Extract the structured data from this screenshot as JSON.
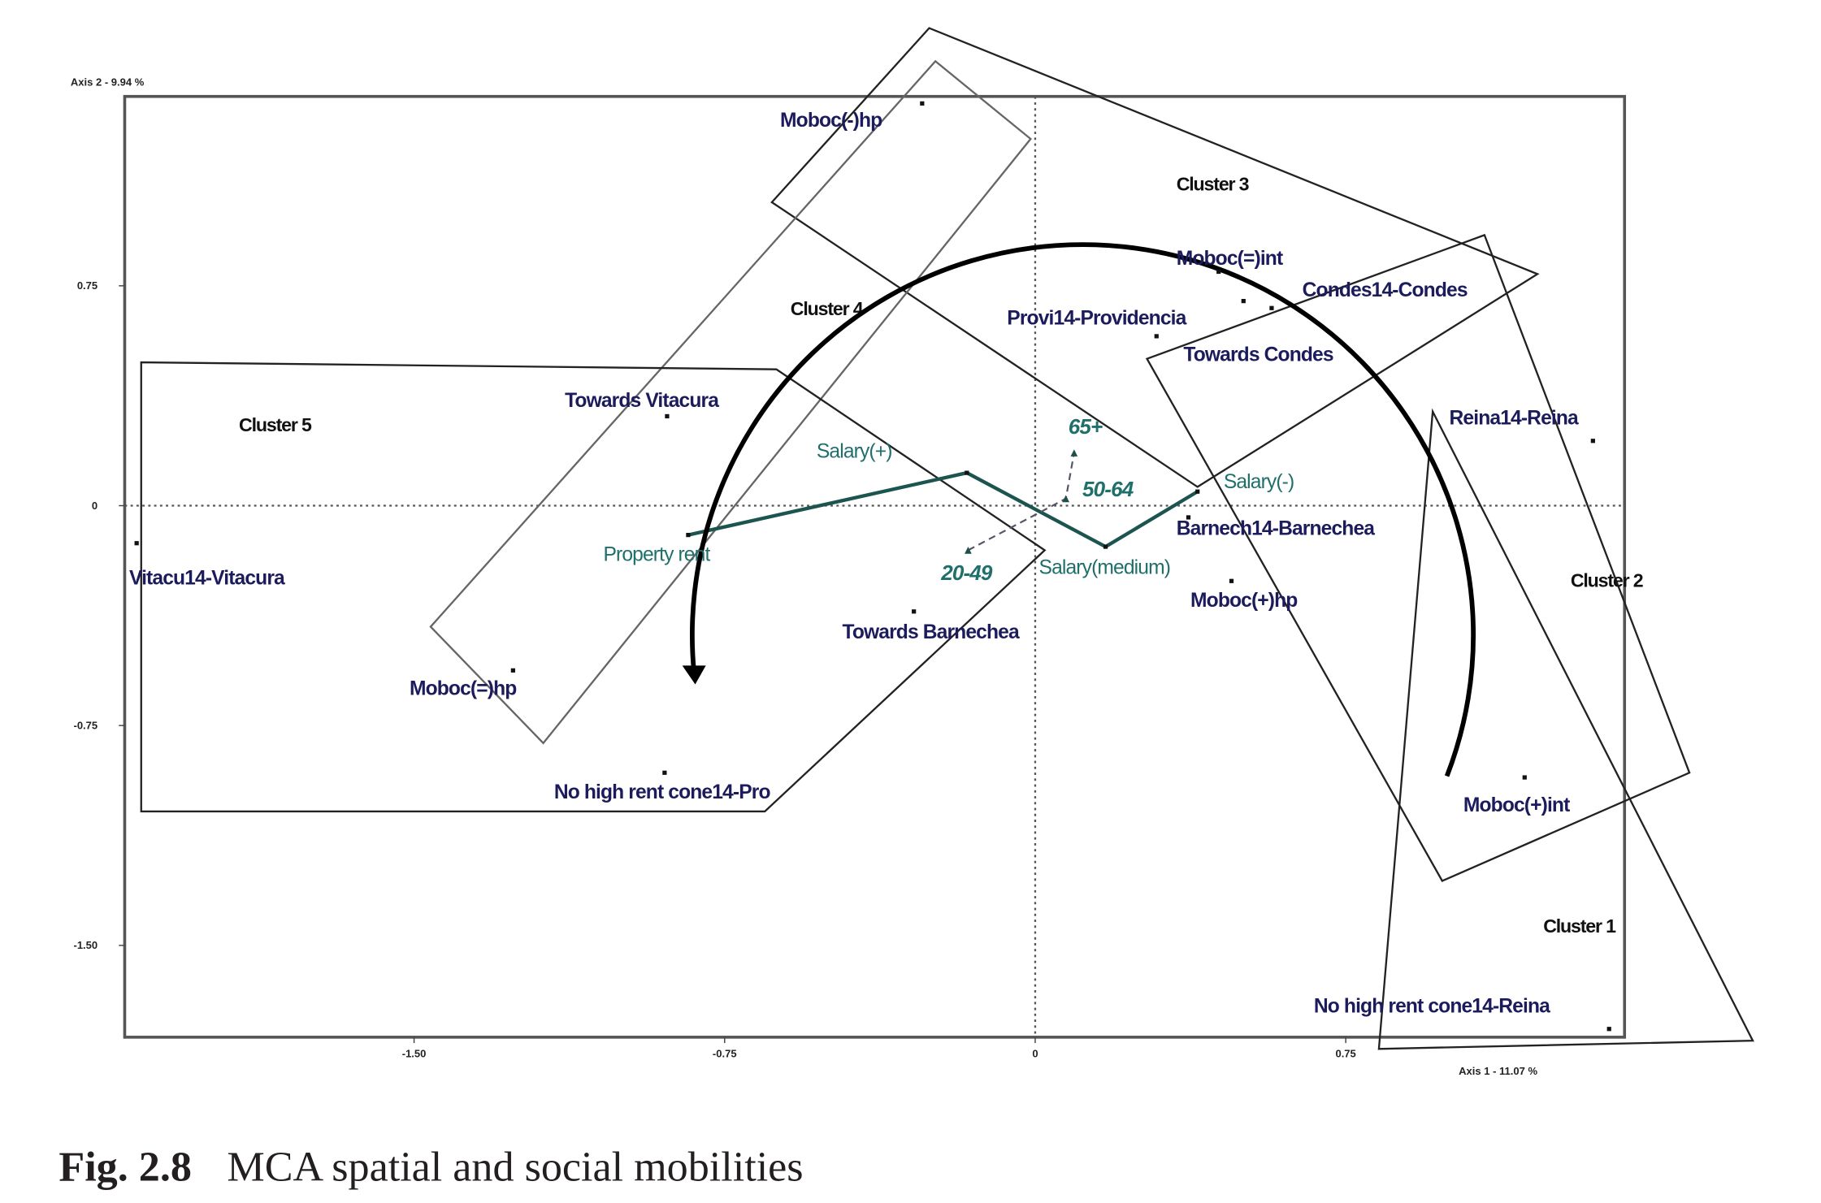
{
  "chart_data": {
    "type": "scatter",
    "title": "",
    "xlabel": "Axis 1 - 11.07 %",
    "ylabel": "Axis 2 - 9.94 %",
    "xlim": [
      -2.2,
      1.42
    ],
    "ylim": [
      -1.81,
      1.4
    ],
    "xticks": [
      {
        "v": -1.5,
        "label": "-1.50"
      },
      {
        "v": -0.75,
        "label": "-0.75"
      },
      {
        "v": 0,
        "label": "0"
      },
      {
        "v": 0.75,
        "label": "0.75"
      }
    ],
    "yticks": [
      {
        "v": 0.75,
        "label": "0.75"
      },
      {
        "v": 0,
        "label": "0"
      },
      {
        "v": -0.75,
        "label": "-0.75"
      },
      {
        "v": -1.5,
        "label": "-1.50"
      }
    ],
    "points": [
      {
        "label": "Moboc(-)hp",
        "x": -0.273,
        "y": 1.372,
        "lx": -0.616,
        "ly": 1.292,
        "group": "active"
      },
      {
        "label": "Moboc(=)int",
        "x": 0.443,
        "y": 0.798,
        "lx": 0.341,
        "ly": 0.822,
        "group": "active"
      },
      {
        "label": "Condes14-Condes",
        "x": 0.571,
        "y": 0.674,
        "lx": 0.645,
        "ly": 0.714,
        "group": "active"
      },
      {
        "label": "Provi14-Providencia",
        "x": 0.293,
        "y": 0.578,
        "lx": -0.068,
        "ly": 0.618,
        "group": "active"
      },
      {
        "label": "Towards Condes",
        "x": 0.503,
        "y": 0.698,
        "lx": 0.358,
        "ly": 0.493,
        "group": "active"
      },
      {
        "label": "Towards Vitacura",
        "x": -0.889,
        "y": 0.305,
        "lx": -1.136,
        "ly": 0.337,
        "group": "active"
      },
      {
        "label": "Vitacu14-Vitacura",
        "x": -2.17,
        "y": -0.128,
        "lx": -2.188,
        "ly": -0.269,
        "group": "active"
      },
      {
        "label": "Barnech14-Barnechea",
        "x": 0.37,
        "y": -0.04,
        "lx": 0.341,
        "ly": -0.1,
        "group": "active"
      },
      {
        "label": "Moboc(+)hp",
        "x": 0.474,
        "y": -0.257,
        "lx": 0.375,
        "ly": -0.345,
        "group": "active"
      },
      {
        "label": "Towards Barnechea",
        "x": -0.293,
        "y": -0.361,
        "lx": -0.466,
        "ly": -0.453,
        "group": "active"
      },
      {
        "label": "Moboc(=)hp",
        "x": -1.261,
        "y": -0.562,
        "lx": -1.511,
        "ly": -0.646,
        "group": "active"
      },
      {
        "label": "No high rent cone14-Pro",
        "x": -0.895,
        "y": -0.911,
        "lx": -1.162,
        "ly": -0.999,
        "group": "active"
      },
      {
        "label": "Reina14-Reina",
        "x": 1.347,
        "y": 0.221,
        "lx": 1.0,
        "ly": 0.277,
        "group": "active"
      },
      {
        "label": "Moboc(+)int",
        "x": 1.182,
        "y": -0.927,
        "lx": 1.034,
        "ly": -1.043,
        "group": "active"
      },
      {
        "label": "No high rent cone14-Reina",
        "x": 1.386,
        "y": -1.785,
        "lx": 0.673,
        "ly": -1.729,
        "group": "active"
      },
      {
        "label": "Property rent",
        "x": -0.838,
        "y": -0.1,
        "lx": -1.043,
        "ly": -0.189,
        "group": "supplementary"
      },
      {
        "label": "Salary(+)",
        "x": -0.165,
        "y": 0.112,
        "lx": -0.528,
        "ly": 0.164,
        "group": "supplementary"
      },
      {
        "label": "Salary(medium)",
        "x": 0.17,
        "y": -0.14,
        "lx": 0.009,
        "ly": -0.233,
        "group": "supplementary"
      },
      {
        "label": "Salary(-)",
        "x": 0.392,
        "y": 0.048,
        "lx": 0.455,
        "ly": 0.06,
        "group": "supplementary"
      },
      {
        "label": "65+",
        "x": 0.094,
        "y": 0.18,
        "lx": 0.08,
        "ly": 0.245,
        "group": "age"
      },
      {
        "label": "50-64",
        "x": 0.074,
        "y": 0.024,
        "lx": 0.114,
        "ly": 0.032,
        "group": "age"
      },
      {
        "label": "20-49",
        "x": -0.162,
        "y": -0.152,
        "lx": -0.227,
        "ly": -0.253,
        "group": "age"
      }
    ],
    "salary_path": [
      "Property rent",
      "Salary(+)",
      "Salary(medium)",
      "Salary(-)"
    ],
    "age_path": [
      "20-49",
      "50-64",
      "65+"
    ],
    "clusters": [
      {
        "label": "Cluster 1",
        "lx": 1.227,
        "ly": -1.456,
        "polygon": [
          [
            0.96,
            0.321
          ],
          [
            0.83,
            -1.853
          ],
          [
            1.733,
            -1.825
          ]
        ],
        "stroke": "#222"
      },
      {
        "label": "Cluster 2",
        "lx": 1.293,
        "ly": -0.277,
        "polygon": [
          [
            0.27,
            0.501
          ],
          [
            1.085,
            0.923
          ],
          [
            1.58,
            -0.911
          ],
          [
            0.983,
            -1.28
          ]
        ],
        "stroke": "#222"
      },
      {
        "label": "Cluster 3",
        "lx": 0.341,
        "ly": 1.075,
        "polygon": [
          [
            -0.636,
            1.035
          ],
          [
            -0.256,
            1.629
          ],
          [
            1.213,
            0.79
          ],
          [
            0.392,
            0.064
          ]
        ],
        "stroke": "#222"
      },
      {
        "label": "Cluster 4",
        "lx": -0.591,
        "ly": 0.65,
        "polygon": [
          [
            -1.46,
            -0.413
          ],
          [
            -0.241,
            1.516
          ],
          [
            -0.011,
            1.251
          ],
          [
            -1.188,
            -0.81
          ]
        ],
        "stroke": "#666"
      },
      {
        "label": "Cluster 5",
        "lx": -1.923,
        "ly": 0.253,
        "polygon": [
          [
            -2.159,
            0.489
          ],
          [
            -0.625,
            0.465
          ],
          [
            0.023,
            -0.152
          ],
          [
            -0.653,
            -1.043
          ],
          [
            -2.159,
            -1.043
          ]
        ],
        "stroke": "#222"
      }
    ]
  },
  "caption": {
    "number": "Fig. 2.8",
    "text": "MCA spatial and social mobilities"
  }
}
